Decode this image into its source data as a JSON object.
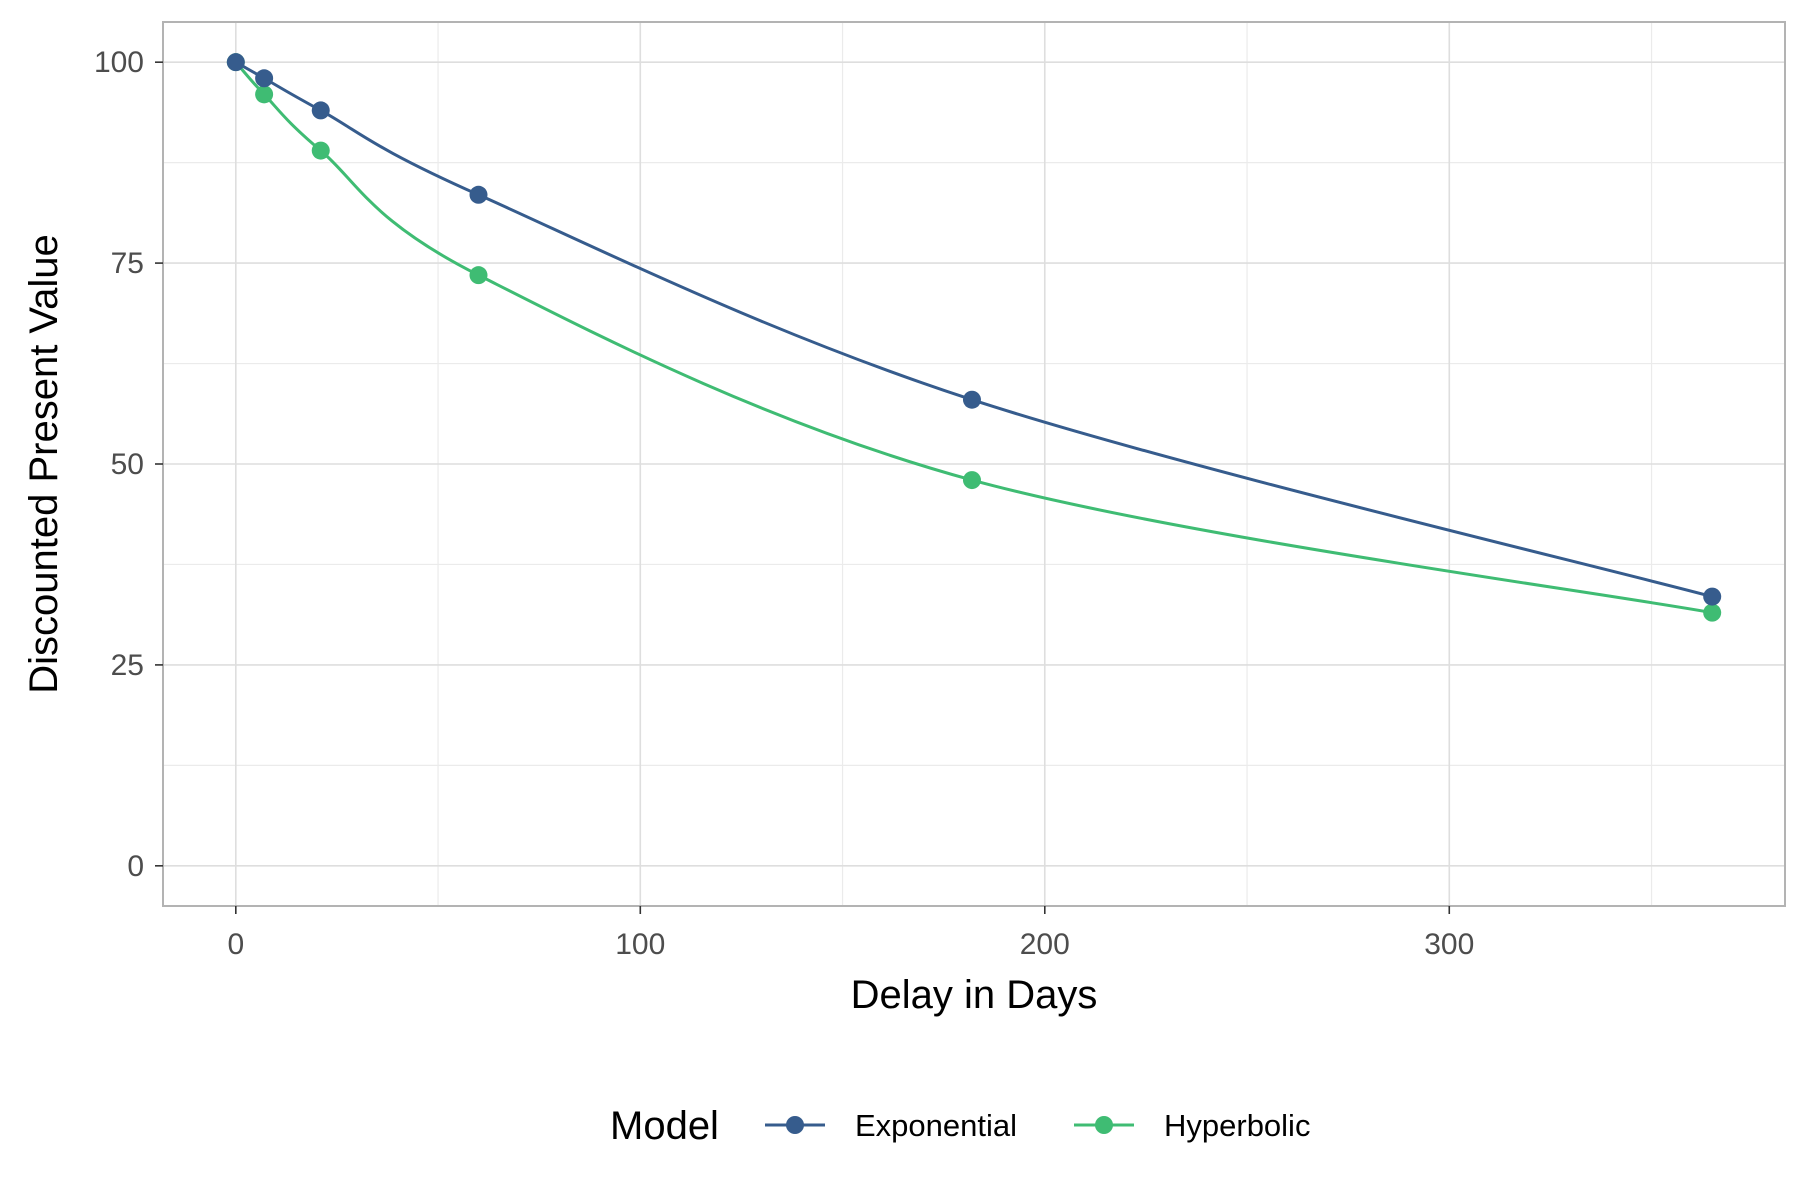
{
  "chart_data": {
    "type": "line",
    "title": "",
    "xlabel": "Delay in Days",
    "ylabel": "Discounted Present Value",
    "xlim": [
      -18,
      383
    ],
    "ylim": [
      -5,
      105
    ],
    "x_ticks": [
      0,
      100,
      200,
      300
    ],
    "x_tick_labels": [
      "0",
      "100",
      "200",
      "300"
    ],
    "y_ticks": [
      0,
      25,
      50,
      75,
      100
    ],
    "y_tick_labels": [
      "0",
      "25",
      "50",
      "75",
      "100"
    ],
    "grid": true,
    "legend": {
      "title": "Model",
      "position": "bottom"
    },
    "x": [
      0,
      7,
      21,
      60,
      182,
      365
    ],
    "series": [
      {
        "name": "Exponential",
        "color": "#365C8D",
        "values": [
          100,
          98,
          94,
          83.5,
          58,
          33.5
        ]
      },
      {
        "name": "Hyperbolic",
        "color": "#3FBC73",
        "values": [
          100,
          96,
          89,
          73.5,
          48,
          31.5
        ]
      }
    ]
  }
}
